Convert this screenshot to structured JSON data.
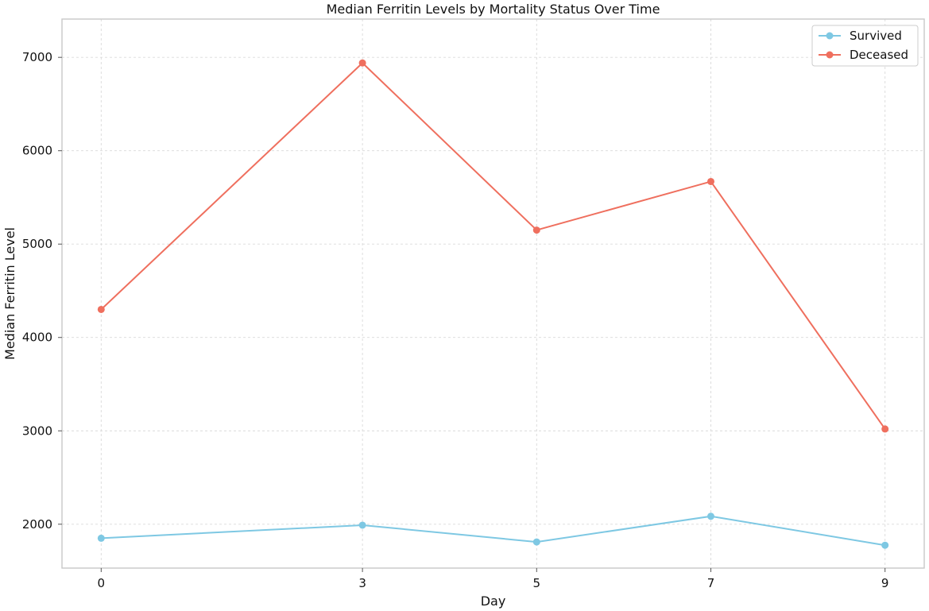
{
  "chart_data": {
    "type": "line",
    "title": "Median Ferritin Levels by Mortality Status Over Time",
    "xlabel": "Day",
    "ylabel": "Median Ferritin Level",
    "x": [
      0,
      3,
      5,
      7,
      9
    ],
    "xticks": [
      "0",
      "3",
      "5",
      "7",
      "9"
    ],
    "xlim": [
      -0.45,
      9.45
    ],
    "yticks": [
      2000,
      3000,
      4000,
      5000,
      6000,
      7000
    ],
    "ylim": [
      1530,
      7410
    ],
    "grid": true,
    "legend_position": "top-right",
    "series": [
      {
        "name": "Survived",
        "color": "#7ec8e3",
        "marker": "circle",
        "values": [
          1850,
          1990,
          1810,
          2085,
          1775
        ]
      },
      {
        "name": "Deceased",
        "color": "#ef6f5e",
        "marker": "circle",
        "values": [
          4300,
          6940,
          5150,
          5670,
          3020
        ]
      }
    ]
  }
}
